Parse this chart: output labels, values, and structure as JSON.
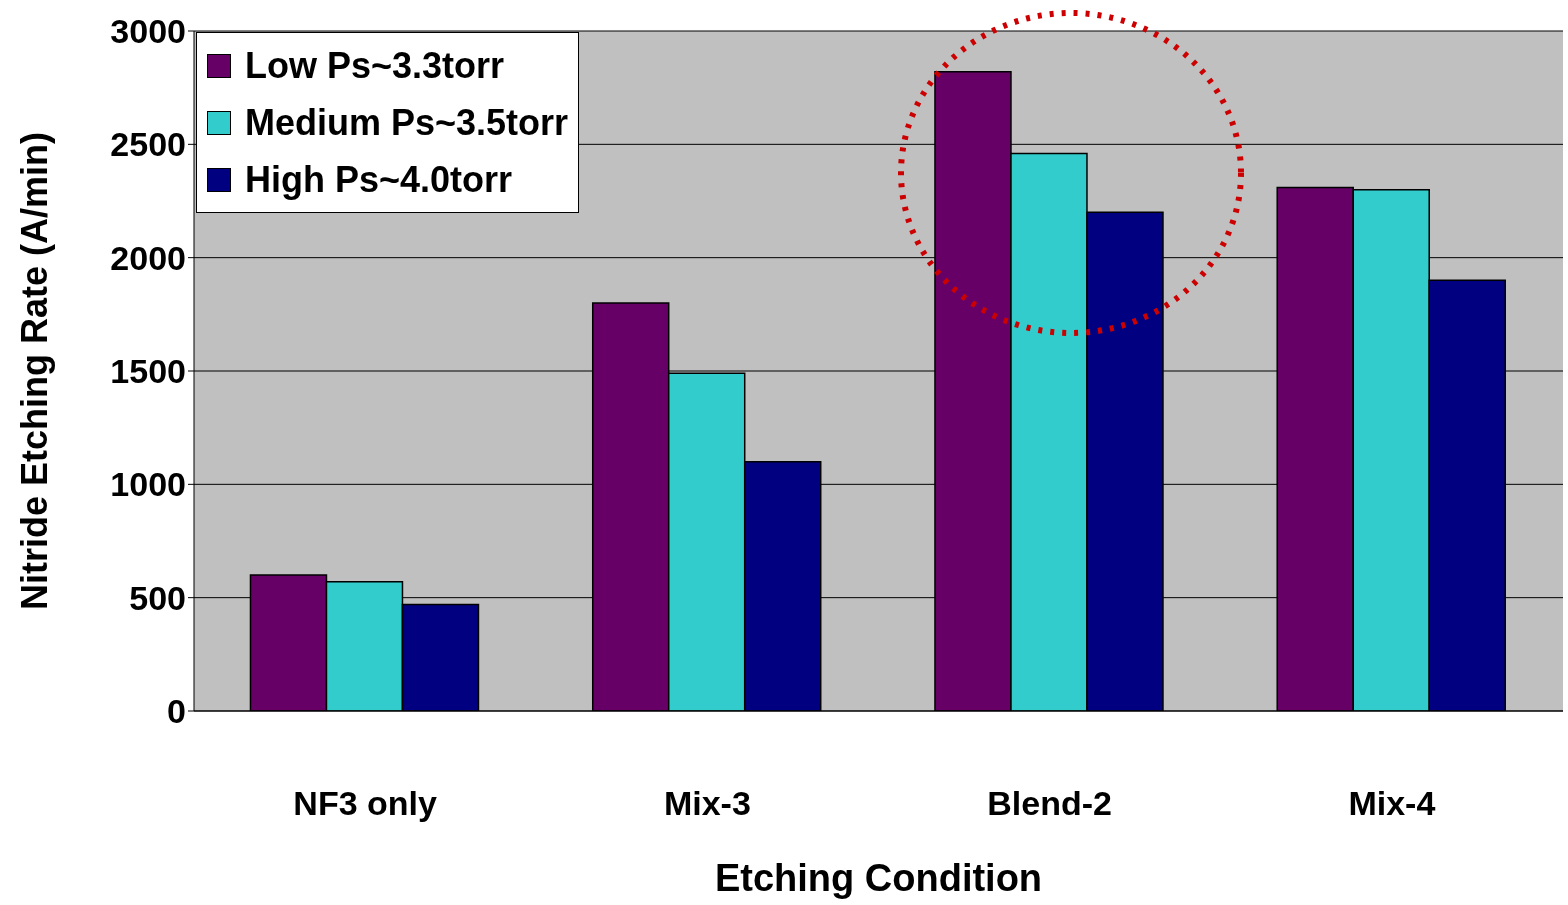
{
  "chart_data": {
    "type": "bar",
    "xlabel": "Etching Condition",
    "ylabel": "Nitride Etching Rate (A/min)",
    "categories": [
      "NF3 only",
      "Mix-3",
      "Blend-2",
      "Mix-4"
    ],
    "series": [
      {
        "name": "Low Ps~3.3torr",
        "color": "#660066",
        "values": [
          600,
          1800,
          2820,
          2310
        ]
      },
      {
        "name": "Medium Ps~3.5torr",
        "color": "#33cccc",
        "values": [
          570,
          1490,
          2460,
          2300
        ]
      },
      {
        "name": "High Ps~4.0torr",
        "color": "#000080",
        "values": [
          470,
          1100,
          2200,
          1900
        ]
      }
    ],
    "ylim": [
      0,
      3000
    ],
    "yticks": [
      0,
      500,
      1000,
      1500,
      2000,
      2500,
      3000
    ],
    "grid": "y",
    "legend": "top left"
  }
}
